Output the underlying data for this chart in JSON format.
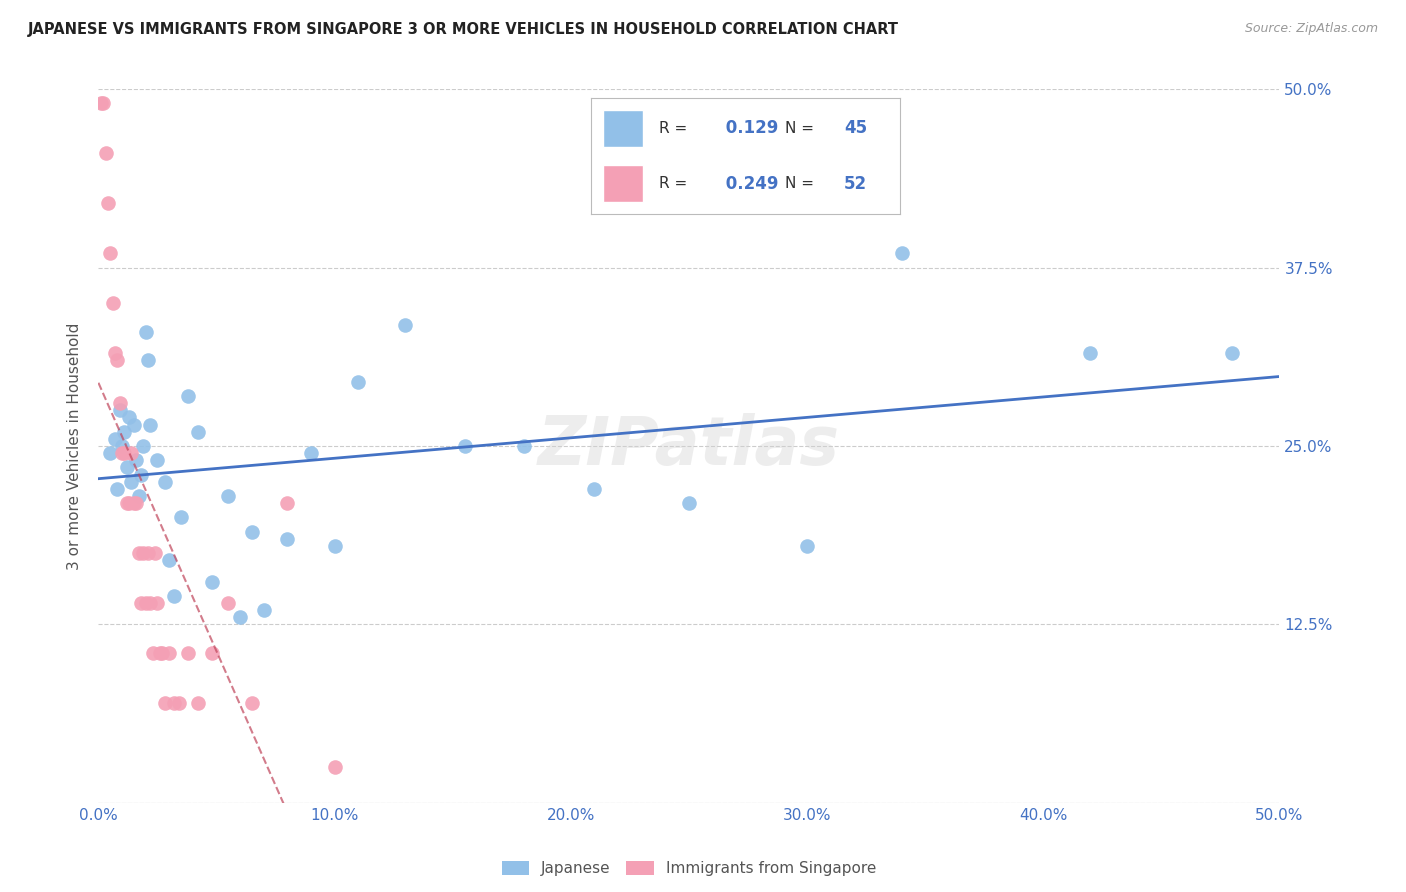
{
  "title": "JAPANESE VS IMMIGRANTS FROM SINGAPORE 3 OR MORE VEHICLES IN HOUSEHOLD CORRELATION CHART",
  "source": "Source: ZipAtlas.com",
  "ylabel": "3 or more Vehicles in Household",
  "xlim": [
    0.0,
    0.5
  ],
  "ylim": [
    0.0,
    0.5
  ],
  "xticks": [
    0.0,
    0.1,
    0.2,
    0.3,
    0.4,
    0.5
  ],
  "yticks": [
    0.0,
    0.125,
    0.25,
    0.375,
    0.5
  ],
  "xticklabels": [
    "0.0%",
    "10.0%",
    "20.0%",
    "30.0%",
    "40.0%",
    "50.0%"
  ],
  "yticklabels_right": [
    "",
    "12.5%",
    "25.0%",
    "37.5%",
    "50.0%"
  ],
  "legend_label1": "Japanese",
  "legend_label2": "Immigrants from Singapore",
  "R1": 0.129,
  "N1": 45,
  "R2": 0.249,
  "N2": 52,
  "color1": "#92C0E8",
  "color2": "#F4A0B5",
  "trendline1_color": "#4472C4",
  "trendline2_color": "#C0445A",
  "watermark": "ZIPatlas",
  "blue_x": [
    0.005,
    0.007,
    0.008,
    0.009,
    0.01,
    0.011,
    0.012,
    0.013,
    0.014,
    0.015,
    0.016,
    0.017,
    0.018,
    0.019,
    0.02,
    0.021,
    0.022,
    0.025,
    0.028,
    0.03,
    0.032,
    0.035,
    0.038,
    0.042,
    0.048,
    0.055,
    0.06,
    0.065,
    0.07,
    0.08,
    0.09,
    0.1,
    0.11,
    0.13,
    0.155,
    0.18,
    0.21,
    0.25,
    0.3,
    0.34,
    0.42,
    0.48
  ],
  "blue_y": [
    0.245,
    0.255,
    0.22,
    0.275,
    0.25,
    0.26,
    0.235,
    0.27,
    0.225,
    0.265,
    0.24,
    0.215,
    0.23,
    0.25,
    0.33,
    0.31,
    0.265,
    0.24,
    0.225,
    0.17,
    0.145,
    0.2,
    0.285,
    0.26,
    0.155,
    0.215,
    0.13,
    0.19,
    0.135,
    0.185,
    0.245,
    0.18,
    0.295,
    0.335,
    0.25,
    0.25,
    0.22,
    0.21,
    0.18,
    0.385,
    0.315,
    0.315
  ],
  "pink_x": [
    0.001,
    0.002,
    0.003,
    0.004,
    0.005,
    0.006,
    0.007,
    0.008,
    0.009,
    0.01,
    0.011,
    0.012,
    0.013,
    0.014,
    0.015,
    0.016,
    0.017,
    0.018,
    0.019,
    0.02,
    0.021,
    0.022,
    0.023,
    0.024,
    0.025,
    0.026,
    0.027,
    0.028,
    0.03,
    0.032,
    0.034,
    0.038,
    0.042,
    0.048,
    0.055,
    0.065,
    0.08,
    0.1
  ],
  "pink_y": [
    0.49,
    0.49,
    0.455,
    0.42,
    0.385,
    0.35,
    0.315,
    0.31,
    0.28,
    0.245,
    0.245,
    0.21,
    0.21,
    0.245,
    0.21,
    0.21,
    0.175,
    0.14,
    0.175,
    0.14,
    0.175,
    0.14,
    0.105,
    0.175,
    0.14,
    0.105,
    0.105,
    0.07,
    0.105,
    0.07,
    0.07,
    0.105,
    0.07,
    0.105,
    0.14,
    0.07,
    0.21,
    0.025
  ]
}
